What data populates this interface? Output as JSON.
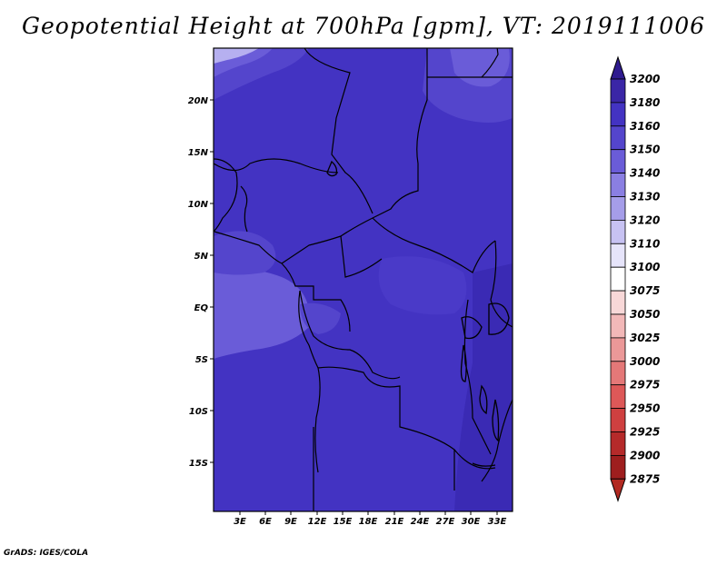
{
  "title": "Geopotential Height at 700hPa [gpm], VT: 2019111006",
  "credit": "GrADS: IGES/COLA",
  "map": {
    "region": "Central Africa",
    "lat_labels": [
      "20N",
      "15N",
      "10N",
      "5N",
      "EQ",
      "5S",
      "10S",
      "15S"
    ],
    "lon_labels": [
      "3E",
      "6E",
      "9E",
      "12E",
      "15E",
      "18E",
      "21E",
      "24E",
      "27E",
      "30E",
      "33E"
    ],
    "field_colors": {
      "dominant": "#4333c2",
      "lighter": "#6a5cd8",
      "lightest": "#b6b0f0",
      "darker": "#3a2ab4",
      "boundary": "#000000"
    }
  },
  "colorbar": {
    "levels": [
      "3200",
      "3180",
      "3160",
      "3150",
      "3140",
      "3130",
      "3120",
      "3110",
      "3100",
      "3075",
      "3050",
      "3025",
      "3000",
      "2975",
      "2950",
      "2925",
      "2900",
      "2875"
    ],
    "colors": [
      "#2f1b8f",
      "#3a26a6",
      "#4333c2",
      "#5445cc",
      "#6a5cd8",
      "#8a7fe2",
      "#a59de9",
      "#c7c2f2",
      "#e6e4fa",
      "#ffffff",
      "#f8d8d8",
      "#f2b8b8",
      "#eb9898",
      "#e47878",
      "#dd5858",
      "#cf4040",
      "#b52a2a",
      "#9e1e1e",
      "#b22a22"
    ]
  }
}
